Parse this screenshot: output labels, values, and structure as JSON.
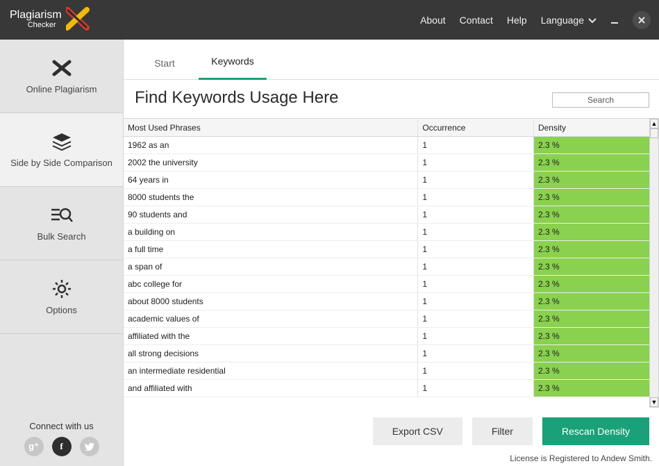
{
  "titlebar": {
    "logo_line1": "Plagiarism",
    "logo_line2": "Checker",
    "logo_colors": {
      "red": "#d23a2f",
      "yellow": "#f2b90d",
      "dark": "#2c2c2c"
    },
    "menu": {
      "about": "About",
      "contact": "Contact",
      "help": "Help",
      "language": "Language"
    },
    "background_color": "#383838"
  },
  "sidebar": {
    "items": [
      {
        "label": "Online Plagiarism"
      },
      {
        "label": "Side by Side Comparison"
      },
      {
        "label": "Bulk Search"
      },
      {
        "label": "Options"
      }
    ],
    "connect_label": "Connect with us"
  },
  "tabs": {
    "start": "Start",
    "keywords": "Keywords",
    "active_color": "#1aa179"
  },
  "heading": "Find Keywords Usage Here",
  "search_button": "Search",
  "table": {
    "columns": {
      "phrase": "Most Used Phrases",
      "occurrence": "Occurrence",
      "density": "Density"
    },
    "density_cell_color": "#8ad14f",
    "rows": [
      {
        "phrase": "1962 as an",
        "occurrence": "1",
        "density": "2.3 %"
      },
      {
        "phrase": "2002 the university",
        "occurrence": "1",
        "density": "2.3 %"
      },
      {
        "phrase": "64 years in",
        "occurrence": "1",
        "density": "2.3 %"
      },
      {
        "phrase": "8000 students the",
        "occurrence": "1",
        "density": "2.3 %"
      },
      {
        "phrase": "90 students and",
        "occurrence": "1",
        "density": "2.3 %"
      },
      {
        "phrase": "a building on",
        "occurrence": "1",
        "density": "2.3 %"
      },
      {
        "phrase": "a full time",
        "occurrence": "1",
        "density": "2.3 %"
      },
      {
        "phrase": "a span of",
        "occurrence": "1",
        "density": "2.3 %"
      },
      {
        "phrase": "abc college for",
        "occurrence": "1",
        "density": "2.3 %"
      },
      {
        "phrase": "about 8000 students",
        "occurrence": "1",
        "density": "2.3 %"
      },
      {
        "phrase": "academic values of",
        "occurrence": "1",
        "density": "2.3 %"
      },
      {
        "phrase": "affiliated with the",
        "occurrence": "1",
        "density": "2.3 %"
      },
      {
        "phrase": "all strong decisions",
        "occurrence": "1",
        "density": "2.3 %"
      },
      {
        "phrase": "an intermediate residential",
        "occurrence": "1",
        "density": "2.3 %"
      },
      {
        "phrase": "and affiliated with",
        "occurrence": "1",
        "density": "2.3 %"
      }
    ]
  },
  "buttons": {
    "export": "Export CSV",
    "filter": "Filter",
    "rescan": "Rescan Density",
    "primary_color": "#1aa179"
  },
  "license_text": "License is Registered to Andew Smith."
}
